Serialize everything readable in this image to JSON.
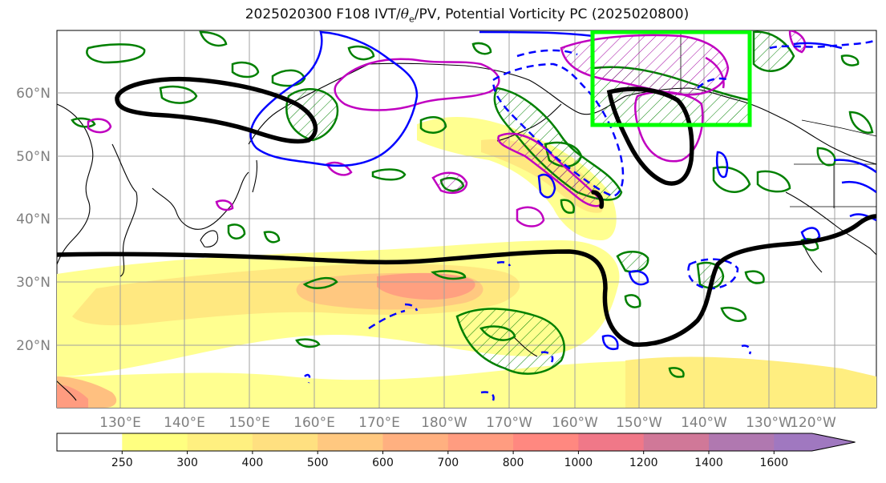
{
  "title": {
    "prefix": "2025020300 F108 IVT/",
    "theta": "θ",
    "theta_sub": "e",
    "suffix": "/PV, Potential Vorticity PC (2025020800)"
  },
  "map": {
    "lat_labels": [
      "60°N",
      "50°N",
      "40°N",
      "30°N",
      "20°N"
    ],
    "lon_labels": [
      "130°E",
      "140°E",
      "150°E",
      "160°E",
      "170°E",
      "180°W",
      "170°W",
      "160°W",
      "150°W",
      "140°W",
      "130°W",
      "120°W"
    ],
    "highlight_box_color": "#00ff00",
    "contour_colors": {
      "black": "#000000",
      "blue": "#0000ff",
      "magenta": "#c000c0",
      "green": "#008000"
    }
  },
  "colorbar": {
    "levels": [
      "250",
      "300",
      "400",
      "500",
      "600",
      "700",
      "800",
      "1000",
      "1200",
      "1400",
      "1600"
    ],
    "colors": [
      "#ffffff",
      "#ffff80",
      "#fff080",
      "#ffe080",
      "#ffc880",
      "#ffb080",
      "#ff9c80",
      "#ff8880",
      "#f07888",
      "#d07898",
      "#b078b0",
      "#a078c0"
    ]
  }
}
